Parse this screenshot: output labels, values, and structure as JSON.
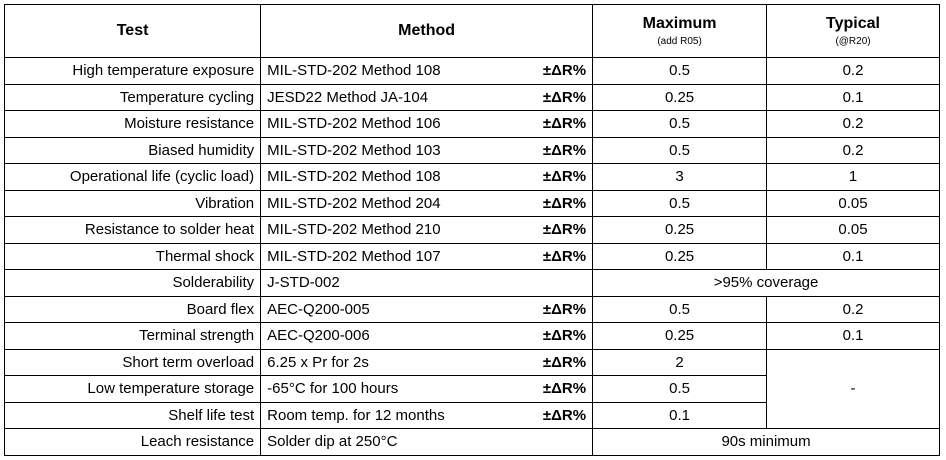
{
  "header": {
    "test": "Test",
    "method": "Method",
    "maximum": "Maximum",
    "maximum_note": "(add R05)",
    "typical": "Typical",
    "typical_note": "(@R20)"
  },
  "rows": [
    {
      "test": "High temperature exposure",
      "method": "MIL-STD-202 Method 108",
      "unit": "±ΔR%",
      "maximum": "0.5",
      "typical": "0.2"
    },
    {
      "test": "Temperature cycling",
      "method": "JESD22 Method JA-104",
      "unit": "±ΔR%",
      "maximum": "0.25",
      "typical": "0.1"
    },
    {
      "test": "Moisture resistance",
      "method": "MIL-STD-202 Method 106",
      "unit": "±ΔR%",
      "maximum": "0.5",
      "typical": "0.2"
    },
    {
      "test": "Biased humidity",
      "method": "MIL-STD-202 Method 103",
      "unit": "±ΔR%",
      "maximum": "0.5",
      "typical": "0.2"
    },
    {
      "test": "Operational life (cyclic load)",
      "method": "MIL-STD-202 Method 108",
      "unit": "±ΔR%",
      "maximum": "3",
      "typical": "1"
    },
    {
      "test": "Vibration",
      "method": "MIL-STD-202 Method 204",
      "unit": "±ΔR%",
      "maximum": "0.5",
      "typical": "0.05"
    },
    {
      "test": "Resistance to solder heat",
      "method": "MIL-STD-202 Method 210",
      "unit": "±ΔR%",
      "maximum": "0.25",
      "typical": "0.05"
    },
    {
      "test": "Thermal shock",
      "method": "MIL-STD-202 Method 107",
      "unit": "±ΔR%",
      "maximum": "0.25",
      "typical": "0.1"
    },
    {
      "test": "Solderability",
      "method": "J-STD-002",
      "result": ">95% coverage"
    },
    {
      "test": "Board flex",
      "method": "AEC-Q200-005",
      "unit": "±ΔR%",
      "maximum": "0.5",
      "typical": "0.2"
    },
    {
      "test": "Terminal strength",
      "method": "AEC-Q200-006",
      "unit": "±ΔR%",
      "maximum": "0.25",
      "typical": "0.1"
    },
    {
      "test": "Short term overload",
      "method": "6.25 x Pr for 2s",
      "unit": "±ΔR%",
      "maximum": "2",
      "typical": "-"
    },
    {
      "test": "Low temperature storage",
      "method": "-65°C for 100 hours",
      "unit": "±ΔR%",
      "maximum": "0.5"
    },
    {
      "test": "Shelf life test",
      "method": "Room temp. for 12 months",
      "unit": "±ΔR%",
      "maximum": "0.1"
    },
    {
      "test": "Leach resistance",
      "method": "Solder dip at 250°C",
      "result": "90s minimum"
    }
  ]
}
